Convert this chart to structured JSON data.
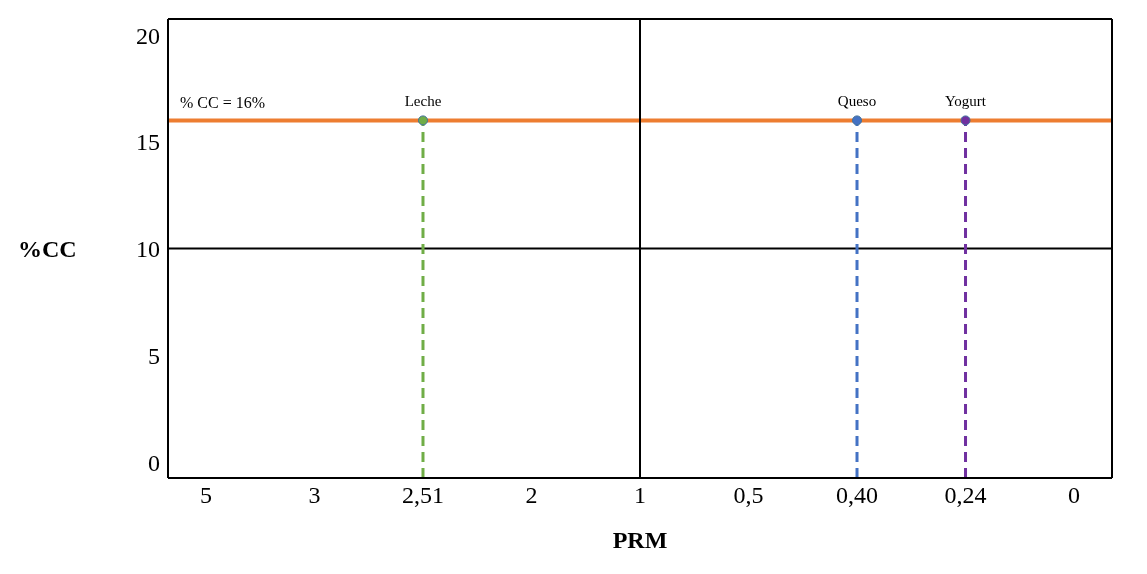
{
  "chart_data": {
    "type": "scatter",
    "xlabel": "PRM",
    "ylabel": "%CC",
    "categories": [
      "5",
      "3",
      "2,51",
      "2",
      "1",
      "0,5",
      "0,40",
      "0,24",
      "0"
    ],
    "ylim": [
      -0.75,
      20.75
    ],
    "yticks": [
      0,
      5,
      10,
      15,
      20
    ],
    "grid": false,
    "series": [
      {
        "type": "line",
        "x": [
          "2,51",
          "2,51"
        ],
        "values": [
          -0.75,
          16
        ],
        "color": "#70ad47",
        "line_style": "dashed",
        "marker": "none"
      },
      {
        "type": "line",
        "x": [
          "0,40",
          "0,40"
        ],
        "values": [
          -0.75,
          16
        ],
        "color": "#4472c4",
        "line_style": "dashed",
        "marker": "none"
      },
      {
        "type": "line",
        "x": [
          "0,24",
          "0,24"
        ],
        "values": [
          -0.75,
          16
        ],
        "color": "#7030a0",
        "line_style": "dashed",
        "marker": "none"
      },
      {
        "name": "Leche",
        "x": [
          "2,51"
        ],
        "values": [
          16
        ],
        "color": "#70ad47",
        "marker": "circle"
      },
      {
        "name": "Queso",
        "x": [
          "0,40"
        ],
        "values": [
          16
        ],
        "color": "#4472c4",
        "marker": "circle"
      },
      {
        "name": "Yogurt",
        "x": [
          "0,24"
        ],
        "values": [
          16
        ],
        "color": "#7030a0",
        "marker": "circle"
      }
    ],
    "ref_lines": [
      {
        "axis": "y",
        "value": 16,
        "label": "%  CC = 16%",
        "color": "#ed7d31"
      },
      {
        "axis": "y",
        "value": 10,
        "label": null,
        "color": "#000000"
      },
      {
        "axis": "x",
        "value": "1",
        "label": null,
        "color": "#000000"
      }
    ]
  }
}
